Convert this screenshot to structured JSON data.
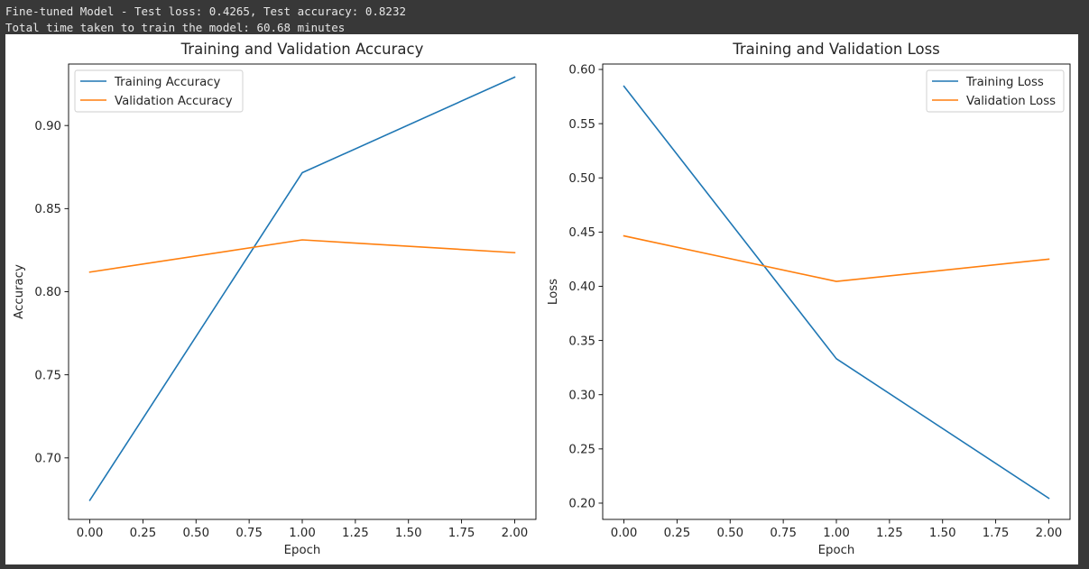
{
  "console": {
    "line0": "                                                                             ",
    "line1": "Fine-tuned Model - Test loss: 0.4265, Test accuracy: 0.8232",
    "line2": "Total time taken to train the model: 60.68 minutes"
  },
  "chart_data": [
    {
      "type": "line",
      "title": "Training and Validation Accuracy",
      "xlabel": "Epoch",
      "ylabel": "Accuracy",
      "x": [
        0,
        1,
        2
      ],
      "xlim": [
        -0.1,
        2.1
      ],
      "ylim": [
        0.663,
        0.937
      ],
      "xticks": [
        "0.00",
        "0.25",
        "0.50",
        "0.75",
        "1.00",
        "1.25",
        "1.50",
        "1.75",
        "2.00"
      ],
      "yticks": [
        "0.70",
        "0.75",
        "0.80",
        "0.85",
        "0.90"
      ],
      "legend_position": "upper left",
      "grid": false,
      "series": [
        {
          "name": "Training Accuracy",
          "values": [
            0.6745,
            0.8716,
            0.9291
          ],
          "color": "#1f77b4"
        },
        {
          "name": "Validation Accuracy",
          "values": [
            0.8118,
            0.8312,
            0.8235
          ],
          "color": "#ff7f0e"
        }
      ]
    },
    {
      "type": "line",
      "title": "Training and Validation Loss",
      "xlabel": "Epoch",
      "ylabel": "Loss",
      "x": [
        0,
        1,
        2
      ],
      "xlim": [
        -0.1,
        2.1
      ],
      "ylim": [
        0.185,
        0.605
      ],
      "xticks": [
        "0.00",
        "0.25",
        "0.50",
        "0.75",
        "1.00",
        "1.25",
        "1.50",
        "1.75",
        "2.00"
      ],
      "yticks": [
        "0.20",
        "0.25",
        "0.30",
        "0.35",
        "0.40",
        "0.45",
        "0.50",
        "0.55",
        "0.60"
      ],
      "legend_position": "upper right",
      "grid": false,
      "series": [
        {
          "name": "Training Loss",
          "values": [
            0.5845,
            0.3332,
            0.2045
          ],
          "color": "#1f77b4"
        },
        {
          "name": "Validation Loss",
          "values": [
            0.4465,
            0.4045,
            0.425
          ],
          "color": "#ff7f0e"
        }
      ]
    }
  ]
}
